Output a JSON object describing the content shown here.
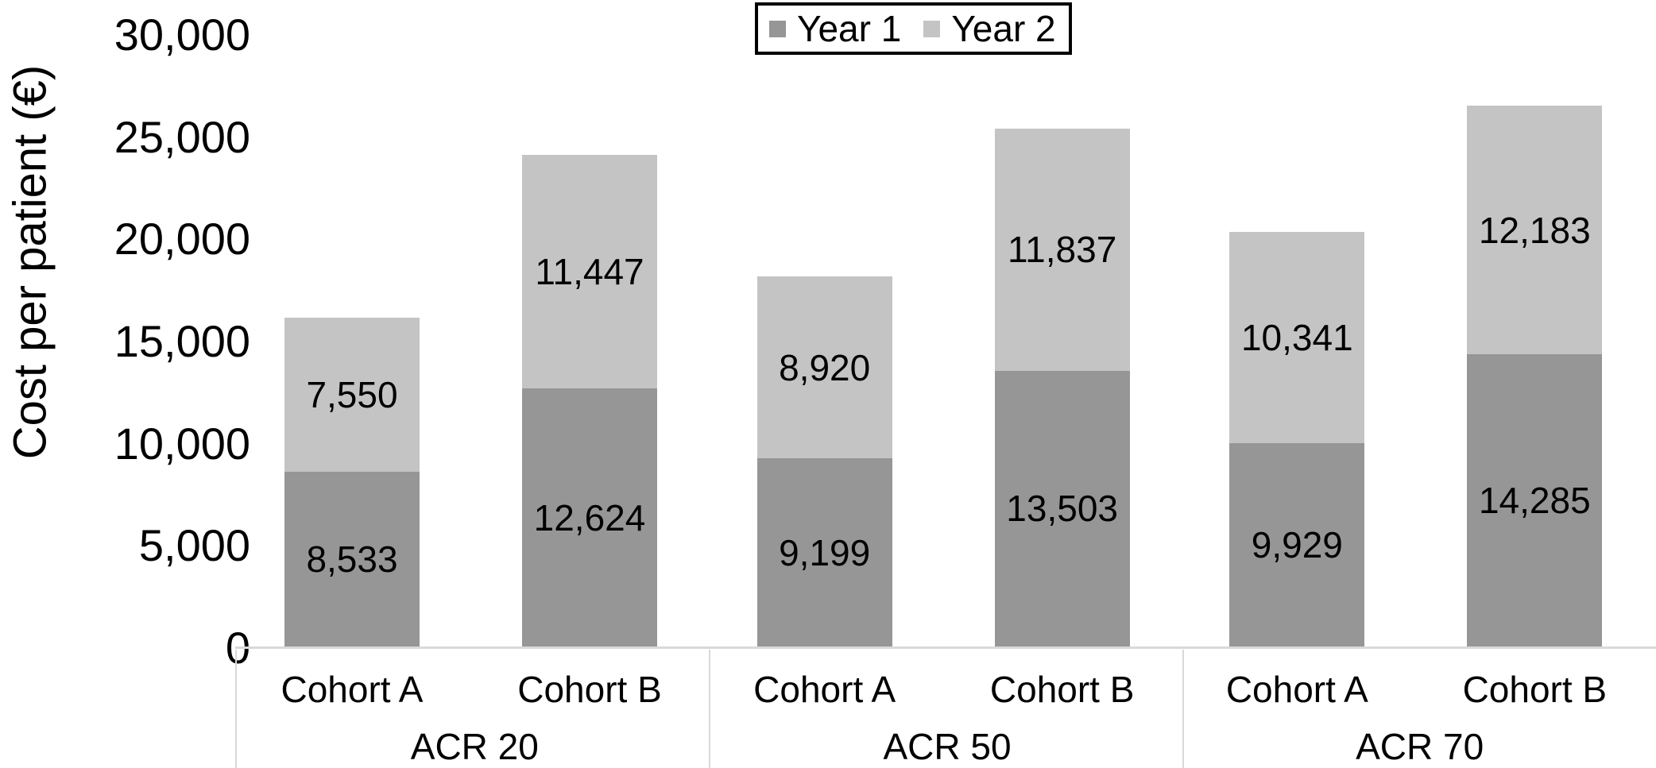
{
  "chart_data": {
    "type": "bar",
    "stacked": true,
    "ylabel": "Cost per patient (€)",
    "ylim": [
      0,
      30000
    ],
    "ytick_values": [
      0,
      5000,
      10000,
      15000,
      20000,
      25000,
      30000
    ],
    "ytick_labels": [
      "0",
      "5,000",
      "10,000",
      "15,000",
      "20,000",
      "25,000",
      "30,000"
    ],
    "grid": false,
    "legend_position": "top-center",
    "groups": [
      {
        "label": "ACR 20",
        "categories": [
          "Cohort A",
          "Cohort B"
        ]
      },
      {
        "label": "ACR 50",
        "categories": [
          "Cohort A",
          "Cohort B"
        ]
      },
      {
        "label": "ACR 70",
        "categories": [
          "Cohort A",
          "Cohort B"
        ]
      }
    ],
    "series": [
      {
        "name": "Year 1",
        "color": "#969696",
        "values": [
          8533,
          12624,
          9199,
          13503,
          9929,
          14285
        ],
        "labels": [
          "8,533",
          "12,624",
          "9,199",
          "13,503",
          "9,929",
          "14,285"
        ]
      },
      {
        "name": "Year 2",
        "color": "#c4c4c4",
        "values": [
          7550,
          11447,
          8920,
          11837,
          10341,
          12183
        ],
        "labels": [
          "7,550",
          "11,447",
          "8,920",
          "11,837",
          "10,341",
          "12,183"
        ]
      }
    ],
    "colors": {
      "axis_line": "#d9d9d9",
      "text": "#000000",
      "background": "#ffffff",
      "legend_border": "#000000"
    }
  }
}
